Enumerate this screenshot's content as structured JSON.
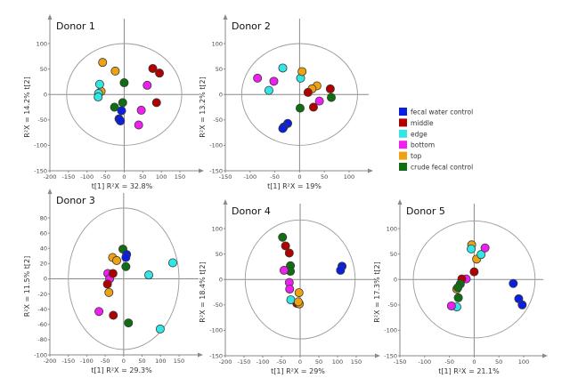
{
  "chart_data": {
    "type": "scatter",
    "legend": {
      "placement": "right",
      "entries": [
        {
          "key": "fecal_water_control",
          "label": "fecal water control",
          "color": "#0b1fe0"
        },
        {
          "key": "middle",
          "label": "middle",
          "color": "#b10000"
        },
        {
          "key": "edge",
          "label": "edge",
          "color": "#32e6e6"
        },
        {
          "key": "bottom",
          "label": "bottom",
          "color": "#ee1ff0"
        },
        {
          "key": "top",
          "label": "top",
          "color": "#eea212"
        },
        {
          "key": "crude_fecal_control",
          "label": "crude fecal control",
          "color": "#0f6e12"
        }
      ]
    },
    "panels": [
      {
        "title": "Donor 1",
        "xlabel": "t[1]  R²X = 32.8%",
        "ylabel": "R²X = 14.2%   t[2]",
        "xticks": [
          -200,
          -150,
          -100,
          -50,
          0,
          50,
          100,
          150
        ],
        "yticks": [
          -150,
          -100,
          -50,
          0,
          50,
          100
        ],
        "ellipse": {
          "rx": 155,
          "ry": 100
        },
        "points": {
          "top": [
            [
              -58,
              63
            ],
            [
              -24,
              46
            ],
            [
              -62,
              6
            ]
          ],
          "edge": [
            [
              -66,
              20
            ],
            [
              -69,
              2
            ],
            [
              -70,
              -5
            ]
          ],
          "crude_fecal_control": [
            [
              0,
              23
            ],
            [
              -4,
              -16
            ],
            [
              -26,
              -25
            ]
          ],
          "fecal_water_control": [
            [
              -7,
              -32
            ],
            [
              -14,
              -48
            ],
            [
              -10,
              -52
            ]
          ],
          "middle": [
            [
              77,
              51
            ],
            [
              95,
              42
            ],
            [
              87,
              -16
            ]
          ],
          "bottom": [
            [
              62,
              18
            ],
            [
              46,
              -31
            ],
            [
              39,
              -60
            ]
          ]
        }
      },
      {
        "title": "Donor 2",
        "xlabel": "t[1]  R²X = 19%",
        "ylabel": "R²X = 13.2%   t[2]",
        "xticks": [
          -150,
          -100,
          -50,
          0,
          50,
          100
        ],
        "yticks": [
          -150,
          -100,
          -50,
          0,
          50,
          100
        ],
        "ellipse": {
          "rx": 117,
          "ry": 100
        },
        "points": {
          "bottom": [
            [
              -85,
              32
            ],
            [
              -52,
              26
            ],
            [
              40,
              -13
            ]
          ],
          "edge": [
            [
              -34,
              52
            ],
            [
              -62,
              8
            ],
            [
              2,
              32
            ]
          ],
          "top": [
            [
              5,
              45
            ],
            [
              35,
              17
            ],
            [
              25,
              11
            ]
          ],
          "middle": [
            [
              17,
              4
            ],
            [
              62,
              11
            ],
            [
              28,
              -25
            ]
          ],
          "crude_fecal_control": [
            [
              64,
              -6
            ],
            [
              1,
              -27
            ]
          ],
          "fecal_water_control": [
            [
              -24,
              -57
            ],
            [
              -32,
              -64
            ],
            [
              -34,
              -67
            ]
          ]
        }
      },
      {
        "title": "Donor 3",
        "xlabel": "t[1]  R²X = 29.3%",
        "ylabel": "R²X = 11.5%   t[2]",
        "xticks": [
          -200,
          -150,
          -100,
          -50,
          0,
          50,
          100,
          150
        ],
        "yticks": [
          -100,
          -80,
          -60,
          -40,
          -20,
          0,
          20,
          40,
          60,
          80
        ],
        "ellipse": {
          "rx": 150,
          "ry": 93
        },
        "points": {
          "crude_fecal_control": [
            [
              -2,
              39
            ],
            [
              6,
              16
            ],
            [
              13,
              -58
            ]
          ],
          "fecal_water_control": [
            [
              8,
              32
            ],
            [
              6,
              28
            ]
          ],
          "top": [
            [
              -30,
              28
            ],
            [
              -19,
              24
            ],
            [
              -40,
              -18
            ]
          ],
          "bottom": [
            [
              -43,
              7
            ],
            [
              -38,
              0
            ],
            [
              -67,
              -43
            ]
          ],
          "middle": [
            [
              -29,
              7
            ],
            [
              -44,
              -7
            ],
            [
              -28,
              -48
            ]
          ],
          "edge": [
            [
              68,
              5
            ],
            [
              133,
              21
            ],
            [
              99,
              -66
            ]
          ]
        }
      },
      {
        "title": "Donor 4",
        "xlabel": "t[1]  R²X = 29%",
        "ylabel": "R²X = 18.4%   t[2]",
        "xticks": [
          -200,
          -150,
          -100,
          -50,
          0,
          50,
          100,
          150
        ],
        "yticks": [
          -150,
          -100,
          -50,
          0,
          50,
          100
        ],
        "ellipse": {
          "rx": 147,
          "ry": 117
        },
        "points": {
          "crude_fecal_control": [
            [
              -47,
              83
            ],
            [
              -26,
              27
            ],
            [
              -26,
              16
            ]
          ],
          "middle": [
            [
              -39,
              66
            ],
            [
              -29,
              52
            ],
            [
              -9,
              -47
            ]
          ],
          "bottom": [
            [
              -43,
              18
            ],
            [
              -29,
              -6
            ],
            [
              -28,
              -19
            ]
          ],
          "edge": [
            [
              -25,
              -40
            ]
          ],
          "top": [
            [
              -3,
              -26
            ],
            [
              -2,
              -48
            ],
            [
              -5,
              -44
            ]
          ],
          "fecal_water_control": [
            [
              112,
              26
            ],
            [
              108,
              18
            ]
          ]
        }
      },
      {
        "title": "Donor 5",
        "xlabel": "t[1]  R²X = 21.1%",
        "ylabel": "R²X = 17.3%   t[2]",
        "xticks": [
          -150,
          -100,
          -50,
          0,
          50,
          100
        ],
        "yticks": [
          -150,
          -100,
          -50,
          0,
          50,
          100
        ],
        "ellipse": {
          "rx": 123,
          "ry": 115
        },
        "points": {
          "top": [
            [
              -5,
              68
            ],
            [
              5,
              40
            ],
            [
              -35,
              -19
            ]
          ],
          "edge": [
            [
              -6,
              60
            ],
            [
              14,
              49
            ],
            [
              -35,
              -54
            ]
          ],
          "bottom": [
            [
              22,
              62
            ],
            [
              -16,
              1
            ],
            [
              -46,
              -52
            ]
          ],
          "middle": [
            [
              0,
              15
            ],
            [
              -25,
              1
            ]
          ],
          "crude_fecal_control": [
            [
              -28,
              -9
            ],
            [
              -33,
              -16
            ],
            [
              -32,
              -36
            ]
          ],
          "fecal_water_control": [
            [
              79,
              -8
            ],
            [
              90,
              -38
            ],
            [
              97,
              -50
            ]
          ]
        }
      }
    ]
  }
}
